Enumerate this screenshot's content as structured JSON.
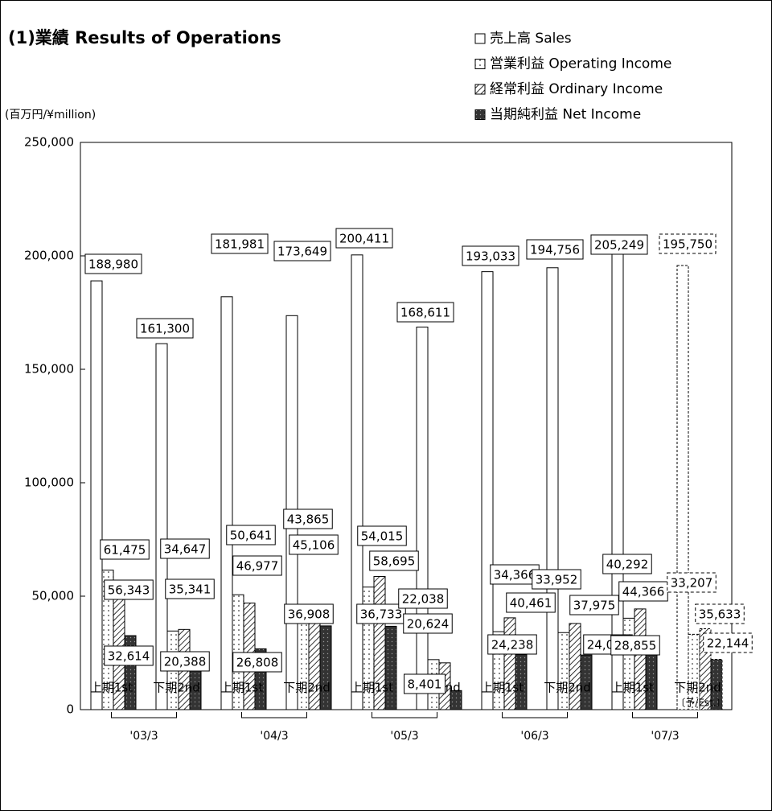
{
  "chart_data": {
    "type": "bar",
    "title": "(1)業績 Results of Operations",
    "y_label": "(百万円/¥million)",
    "categories": [
      "上期1st",
      "下期2nd",
      "上期1st",
      "下期2nd",
      "上期1st",
      "下期2nd",
      "上期1st",
      "下期2nd",
      "上期1st",
      "下期2nd"
    ],
    "category_notes": [
      null,
      null,
      null,
      null,
      null,
      null,
      null,
      null,
      null,
      "〔予/Est.〕"
    ],
    "group_labels": [
      "'03/3",
      "'04/3",
      "'05/3",
      "'06/3",
      "'07/3"
    ],
    "series": [
      {
        "name": "売上高 Sales",
        "color": "#ffffff",
        "pattern": "none",
        "values": [
          188980,
          161300,
          181981,
          173649,
          200411,
          168611,
          193033,
          194756,
          205249,
          195750
        ],
        "value_labels": [
          "188,980",
          "161,300",
          "181,981",
          "173,649",
          "200,411",
          "168,611",
          "193,033",
          "194,756",
          "205,249",
          "195,750"
        ]
      },
      {
        "name": "営業利益 Operating Income",
        "color": "#ffffff",
        "pattern": "dots",
        "values": [
          61475,
          34647,
          50641,
          43865,
          54015,
          22038,
          34366,
          33952,
          40292,
          33207
        ],
        "value_labels": [
          "61,475",
          "34,647",
          "50,641",
          "43,865",
          "54,015",
          "22,038",
          "34,366",
          "33,952",
          "40,292",
          "33,207"
        ]
      },
      {
        "name": "経常利益 Ordinary Income",
        "color": "#ffffff",
        "pattern": "hatch",
        "values": [
          56343,
          35341,
          46977,
          45106,
          58695,
          20624,
          40461,
          37975,
          44366,
          35633
        ],
        "value_labels": [
          "56,343",
          "35,341",
          "46,977",
          "45,106",
          "58,695",
          "20,624",
          "40,461",
          "37,975",
          "44,366",
          "35,633"
        ]
      },
      {
        "name": "当期純利益 Net Income",
        "color": "#333333",
        "pattern": "darkdots",
        "values": [
          32614,
          20388,
          26808,
          36908,
          36733,
          8401,
          24238,
          24065,
          28855,
          22144
        ],
        "value_labels": [
          "32,614",
          "20,388",
          "26,808",
          "36,908",
          "36,733",
          "8,401",
          "24,238",
          "24,065",
          "28,855",
          "22,144"
        ]
      }
    ],
    "ylim": [
      0,
      250000
    ],
    "yticks": [
      0,
      {
        "value": 50000,
        "label": "50,000"
      },
      {
        "value": 100000,
        "label": "100,000"
      },
      {
        "value": 150000,
        "label": "150,000"
      },
      {
        "value": 200000,
        "label": "200,000"
      },
      {
        "value": 250000,
        "label": "250,000"
      }
    ],
    "legend": "top-right"
  }
}
